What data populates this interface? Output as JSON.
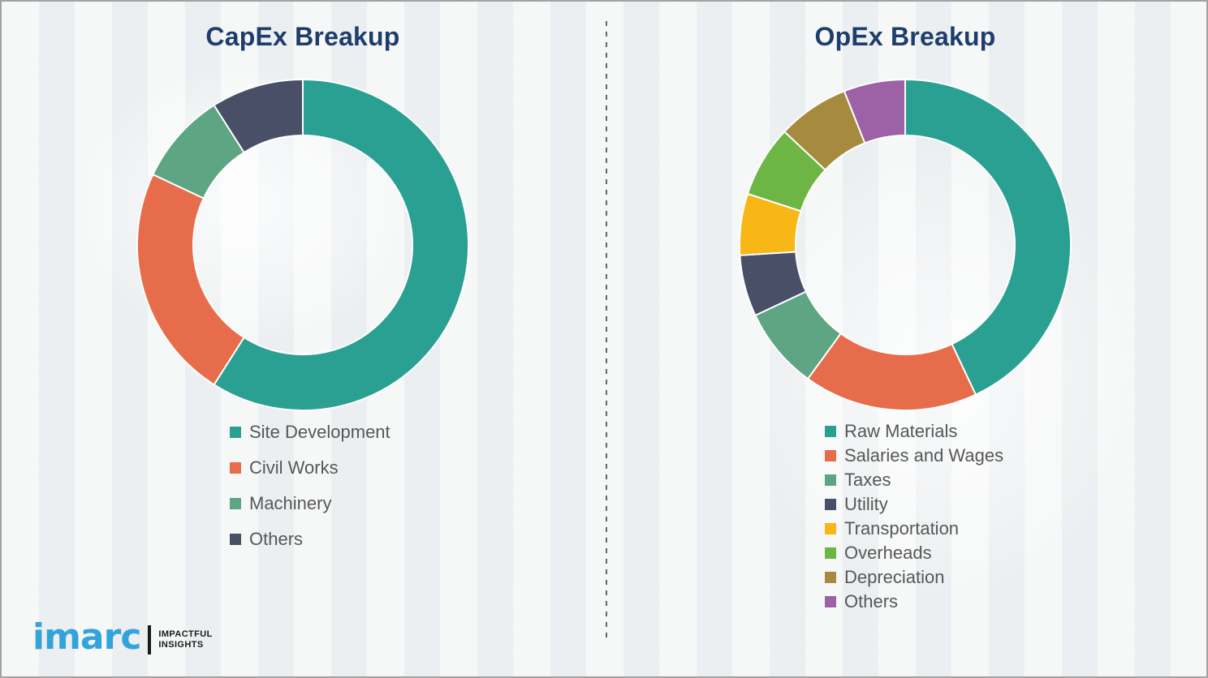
{
  "page": {
    "background_color": "#f2f4f5",
    "border_color": "#a3a3a3",
    "divider_color": "#666666",
    "title_color": "#1d3d6b",
    "legend_text_color": "#575757"
  },
  "chart_data": [
    {
      "type": "donut",
      "title": "CapEx Breakup",
      "categories": [
        "Site Development",
        "Civil Works",
        "Machinery",
        "Others"
      ],
      "values": [
        59,
        23,
        9,
        9
      ],
      "values_are_percent_estimates": true,
      "colors": [
        "#2aa092",
        "#e76c4b",
        "#5ea583",
        "#4a4f68"
      ],
      "start_angle": "top",
      "direction": "clockwise",
      "inner_radius_ratio": 0.66,
      "legend_position": "below-left",
      "data_labels": false
    },
    {
      "type": "donut",
      "title": "OpEx Breakup",
      "categories": [
        "Raw Materials",
        "Salaries and Wages",
        "Taxes",
        "Utility",
        "Transportation",
        "Overheads",
        "Depreciation",
        "Others"
      ],
      "values": [
        43,
        17,
        8,
        6,
        6,
        7,
        7,
        6
      ],
      "values_are_percent_estimates": true,
      "colors": [
        "#2aa092",
        "#e76c4b",
        "#5ea583",
        "#4a4f68",
        "#f8b617",
        "#6db544",
        "#a68b3f",
        "#9d62a6"
      ],
      "start_angle": "top",
      "direction": "clockwise",
      "inner_radius_ratio": 0.66,
      "legend_position": "below-left",
      "data_labels": false
    }
  ],
  "logo": {
    "brand": "imarc",
    "tagline_line1": "IMPACTFUL",
    "tagline_line2": "INSIGHTS",
    "brand_color": "#33a3dc"
  }
}
